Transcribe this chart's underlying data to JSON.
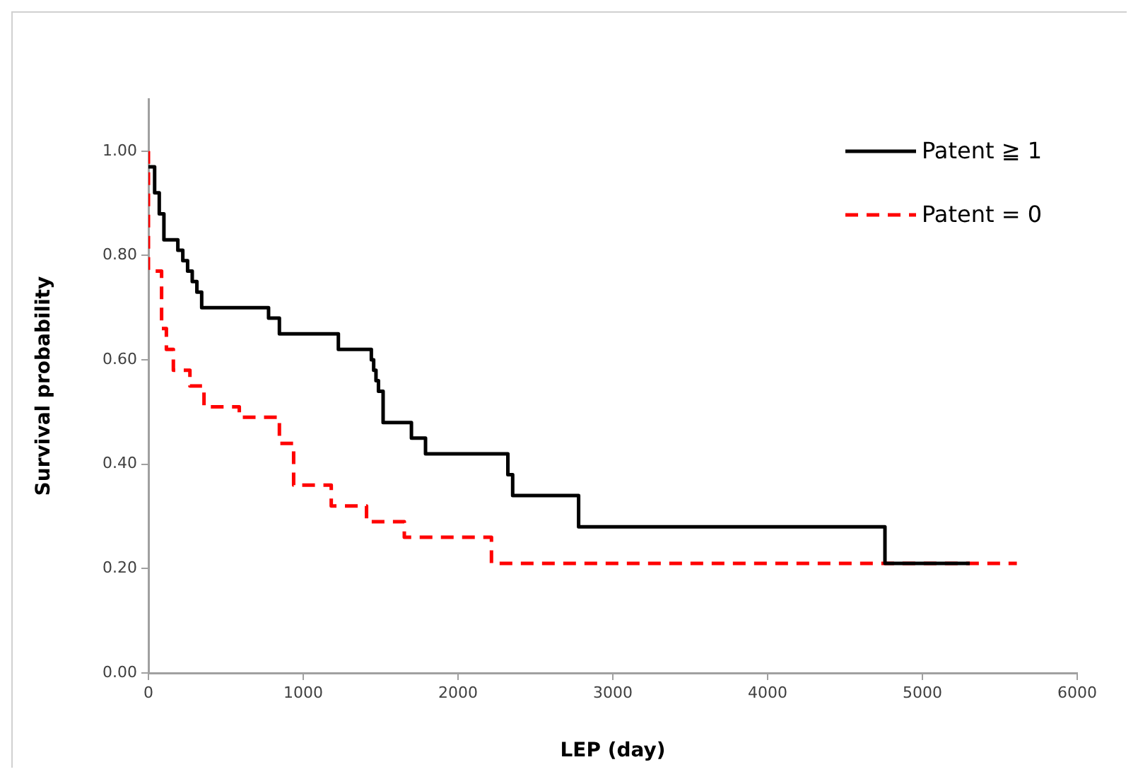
{
  "chart_data": {
    "type": "step",
    "xlabel": "LEP (day)",
    "ylabel": "Survival probability",
    "xlim": [
      0,
      6000
    ],
    "xticks": [
      0,
      1000,
      2000,
      3000,
      4000,
      5000,
      6000
    ],
    "ylim": [
      0,
      1.1
    ],
    "yticks": [
      {
        "value": 0,
        "label": "0.00"
      },
      {
        "value": 0.2,
        "label": "0.20"
      },
      {
        "value": 0.4,
        "label": "0.40"
      },
      {
        "value": 0.6,
        "label": "0.60"
      },
      {
        "value": 0.8,
        "label": "0.80"
      },
      {
        "value": 1,
        "label": "1.00"
      }
    ],
    "grid": false,
    "legend": "top right",
    "marker": "none",
    "series": [
      {
        "name": "Patent ≧ 1",
        "color": "#000000",
        "line_style": "solid",
        "x": [
          0,
          40,
          70,
          100,
          190,
          222,
          253,
          283,
          313,
          344,
          776,
          846,
          1227,
          1440,
          1455,
          1470,
          1486,
          1516,
          1699,
          1790,
          2322,
          2353,
          2779,
          4758,
          5306
        ],
        "values": [
          0.97,
          0.92,
          0.88,
          0.83,
          0.81,
          0.79,
          0.77,
          0.75,
          0.73,
          0.7,
          0.68,
          0.65,
          0.62,
          0.6,
          0.58,
          0.56,
          0.54,
          0.48,
          0.45,
          0.42,
          0.38,
          0.34,
          0.28,
          0.21,
          0.21
        ]
      },
      {
        "name": "Patent = 0",
        "color": "#ff0000",
        "line_style": "dashed",
        "x": [
          0,
          0,
          85,
          116,
          161,
          268,
          359,
          587,
          846,
          938,
          1181,
          1409,
          1653,
          2216,
          5610
        ],
        "values": [
          1.0,
          0.77,
          0.66,
          0.62,
          0.58,
          0.55,
          0.51,
          0.49,
          0.44,
          0.36,
          0.32,
          0.29,
          0.26,
          0.21,
          0.21
        ]
      }
    ]
  }
}
